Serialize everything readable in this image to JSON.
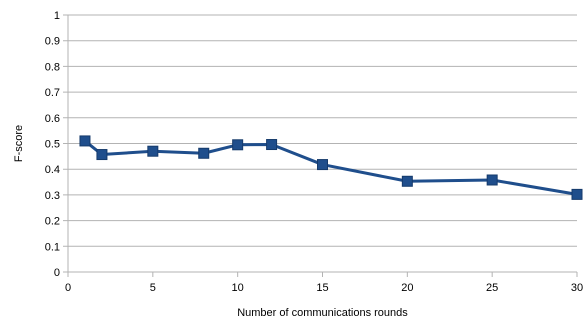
{
  "chart_data": {
    "type": "line",
    "xlabel": "Number of communications rounds",
    "ylabel": "F-score",
    "xlim": [
      0,
      30
    ],
    "ylim": [
      0,
      1
    ],
    "x_ticks": [
      "0",
      "5",
      "10",
      "15",
      "20",
      "25",
      "30"
    ],
    "y_ticks": [
      "0",
      "0.1",
      "0.2",
      "0.3",
      "0.4",
      "0.5",
      "0.6",
      "0.7",
      "0.8",
      "0.9",
      "1"
    ],
    "grid": true,
    "legend": "none",
    "series": [
      {
        "color": "#1f4e8c",
        "marker": "square",
        "points": [
          {
            "x": 1,
            "y": 0.51
          },
          {
            "x": 2,
            "y": 0.457
          },
          {
            "x": 5,
            "y": 0.47
          },
          {
            "x": 8,
            "y": 0.462
          },
          {
            "x": 10,
            "y": 0.495
          },
          {
            "x": 12,
            "y": 0.496
          },
          {
            "x": 15,
            "y": 0.418
          },
          {
            "x": 20,
            "y": 0.353
          },
          {
            "x": 25,
            "y": 0.358
          },
          {
            "x": 30,
            "y": 0.302
          }
        ]
      }
    ]
  }
}
